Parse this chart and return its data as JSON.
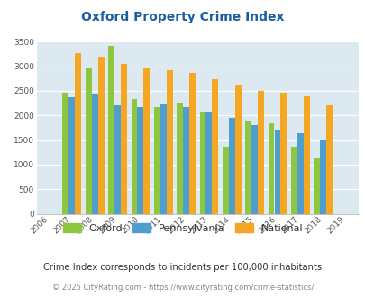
{
  "title": "Oxford Property Crime Index",
  "years": [
    2006,
    2007,
    2008,
    2009,
    2010,
    2011,
    2012,
    2013,
    2014,
    2015,
    2016,
    2017,
    2018,
    2019
  ],
  "oxford": [
    null,
    2460,
    2950,
    3410,
    2340,
    2160,
    2250,
    2060,
    1370,
    1900,
    1840,
    1360,
    1120,
    null
  ],
  "pennsylvania": [
    null,
    2370,
    2430,
    2210,
    2170,
    2230,
    2160,
    2080,
    1950,
    1800,
    1720,
    1640,
    1490,
    null
  ],
  "national": [
    null,
    3260,
    3200,
    3040,
    2950,
    2920,
    2860,
    2730,
    2600,
    2490,
    2470,
    2380,
    2210,
    null
  ],
  "oxford_color": "#8dc63f",
  "pennsylvania_color": "#4f9ece",
  "national_color": "#f5a623",
  "bg_color": "#dce9f0",
  "ylim": [
    0,
    3500
  ],
  "yticks": [
    0,
    500,
    1000,
    1500,
    2000,
    2500,
    3000,
    3500
  ],
  "subtitle": "Crime Index corresponds to incidents per 100,000 inhabitants",
  "footer": "© 2025 CityRating.com - https://www.cityrating.com/crime-statistics/",
  "legend_labels": [
    "Oxford",
    "Pennsylvania",
    "National"
  ]
}
